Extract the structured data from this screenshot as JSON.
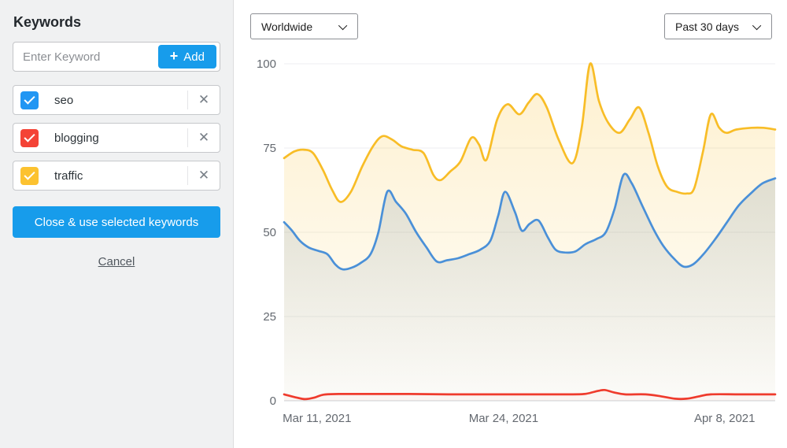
{
  "sidebar": {
    "title": "Keywords",
    "input": {
      "placeholder": "Enter Keyword",
      "add_label": "Add",
      "add_icon": "+"
    },
    "keywords": [
      {
        "label": "seo",
        "checked": true,
        "color": "#2196f3",
        "remove_icon": "✕"
      },
      {
        "label": "blogging",
        "checked": true,
        "color": "#f44336",
        "remove_icon": "✕"
      },
      {
        "label": "traffic",
        "checked": true,
        "color": "#fcc230",
        "remove_icon": "✕"
      }
    ],
    "close_label": "Close & use selected keywords",
    "cancel_label": "Cancel"
  },
  "toolbar": {
    "region_selected": "Worldwide",
    "range_selected": "Past 30 days"
  },
  "chart_data": {
    "type": "area",
    "title": "",
    "xlabel": "",
    "ylabel": "",
    "ylim": [
      0,
      100
    ],
    "grid": true,
    "legend": "none",
    "yticks": [
      0,
      25,
      50,
      75,
      100
    ],
    "xticks": [
      {
        "label": "Mar 11, 2021",
        "pos": 6.7
      },
      {
        "label": "Mar 24, 2021",
        "pos": 44.7
      },
      {
        "label": "Apr 8, 2021",
        "pos": 89.7
      }
    ],
    "axis_text_color": "#646970",
    "grid_color": "#eceef0",
    "zero_line_color": "#ccd1d5",
    "series": [
      {
        "name": "traffic",
        "color": "#f8bd27",
        "fill_from": "rgba(248,189,39,0.22)",
        "fill_to": "rgba(248,189,39,0.02)",
        "points": [
          [
            0,
            72
          ],
          [
            2.1,
            74
          ],
          [
            4.0,
            74.5
          ],
          [
            5.9,
            73.5
          ],
          [
            7.9,
            68.5
          ],
          [
            9.8,
            62.5
          ],
          [
            11.5,
            59
          ],
          [
            13.6,
            62
          ],
          [
            15.9,
            69.5
          ],
          [
            18.1,
            75.5
          ],
          [
            20.0,
            78.5
          ],
          [
            22.0,
            77.5
          ],
          [
            23.9,
            75.5
          ],
          [
            26.1,
            74.5
          ],
          [
            28.4,
            73.5
          ],
          [
            30.4,
            67
          ],
          [
            31.9,
            65.5
          ],
          [
            33.8,
            68
          ],
          [
            35.9,
            71
          ],
          [
            38.1,
            78
          ],
          [
            39.7,
            76
          ],
          [
            41.2,
            71.5
          ],
          [
            43.4,
            83.5
          ],
          [
            45.5,
            88
          ],
          [
            47.9,
            85
          ],
          [
            49.8,
            88.5
          ],
          [
            51.6,
            91
          ],
          [
            53.5,
            87
          ],
          [
            55.9,
            77.5
          ],
          [
            58.7,
            70.5
          ],
          [
            60.6,
            81
          ],
          [
            62.3,
            100
          ],
          [
            64.1,
            89
          ],
          [
            66.0,
            82.5
          ],
          [
            68.3,
            79.5
          ],
          [
            70.4,
            83.5
          ],
          [
            72.3,
            87
          ],
          [
            74.2,
            79.5
          ],
          [
            76.1,
            69.5
          ],
          [
            78.0,
            63.5
          ],
          [
            80.0,
            62
          ],
          [
            81.9,
            61.5
          ],
          [
            83.5,
            63
          ],
          [
            85.3,
            74
          ],
          [
            86.9,
            85
          ],
          [
            88.6,
            81
          ],
          [
            90.1,
            79.5
          ],
          [
            92.1,
            80.5
          ],
          [
            95.2,
            81
          ],
          [
            97.6,
            81
          ],
          [
            100,
            80.5
          ]
        ]
      },
      {
        "name": "seo",
        "color": "#4a90d8",
        "fill_from": "rgba(96,125,148,0.28)",
        "fill_to": "rgba(96,125,148,0.02)",
        "points": [
          [
            0,
            53
          ],
          [
            1.6,
            50.5
          ],
          [
            3.2,
            47.5
          ],
          [
            5.0,
            45.5
          ],
          [
            6.9,
            44.5
          ],
          [
            8.8,
            43.5
          ],
          [
            10.4,
            40.5
          ],
          [
            11.9,
            39
          ],
          [
            13.8,
            39.5
          ],
          [
            15.7,
            41
          ],
          [
            17.6,
            43.5
          ],
          [
            19.2,
            50
          ],
          [
            21.0,
            62
          ],
          [
            22.8,
            59
          ],
          [
            24.8,
            55.5
          ],
          [
            26.9,
            50
          ],
          [
            29.0,
            45.5
          ],
          [
            31.1,
            41.3
          ],
          [
            33.2,
            41.7
          ],
          [
            35.4,
            42.3
          ],
          [
            37.7,
            43.5
          ],
          [
            39.9,
            44.8
          ],
          [
            42.0,
            47.5
          ],
          [
            43.6,
            55
          ],
          [
            45.0,
            62
          ],
          [
            47.0,
            56
          ],
          [
            48.4,
            50.5
          ],
          [
            50.0,
            52.5
          ],
          [
            51.8,
            53.5
          ],
          [
            53.7,
            48.5
          ],
          [
            55.3,
            44.8
          ],
          [
            57.2,
            44
          ],
          [
            59.3,
            44.3
          ],
          [
            61.4,
            46.5
          ],
          [
            63.6,
            48
          ],
          [
            65.5,
            50
          ],
          [
            67.3,
            57
          ],
          [
            69.1,
            67
          ],
          [
            70.8,
            64.5
          ],
          [
            72.9,
            58
          ],
          [
            75.2,
            51
          ],
          [
            77.2,
            46
          ],
          [
            79.5,
            42
          ],
          [
            81.4,
            39.8
          ],
          [
            83.3,
            40.5
          ],
          [
            85.4,
            43.5
          ],
          [
            87.8,
            48
          ],
          [
            90.2,
            53
          ],
          [
            92.6,
            58
          ],
          [
            95.0,
            61.5
          ],
          [
            97.4,
            64.5
          ],
          [
            100,
            66
          ]
        ]
      },
      {
        "name": "blogging",
        "color": "#ef3b2d",
        "fill_from": "rgba(239,59,45,0.14)",
        "fill_to": "rgba(239,59,45,0.03)",
        "points": [
          [
            0,
            1.9
          ],
          [
            2.1,
            1.1
          ],
          [
            4.2,
            0.5
          ],
          [
            6.1,
            0.9
          ],
          [
            8.0,
            1.8
          ],
          [
            11.1,
            2.0
          ],
          [
            17.5,
            2.0
          ],
          [
            25.5,
            2.0
          ],
          [
            33.5,
            1.9
          ],
          [
            41.5,
            1.9
          ],
          [
            49.5,
            1.9
          ],
          [
            57.5,
            1.9
          ],
          [
            61.1,
            2.0
          ],
          [
            63.3,
            2.7
          ],
          [
            65.2,
            3.2
          ],
          [
            67.1,
            2.5
          ],
          [
            69.4,
            1.9
          ],
          [
            73.6,
            1.9
          ],
          [
            76.8,
            1.3
          ],
          [
            79.6,
            0.6
          ],
          [
            81.9,
            0.6
          ],
          [
            84.5,
            1.3
          ],
          [
            86.9,
            1.9
          ],
          [
            92.8,
            1.9
          ],
          [
            100,
            1.9
          ]
        ]
      }
    ]
  }
}
